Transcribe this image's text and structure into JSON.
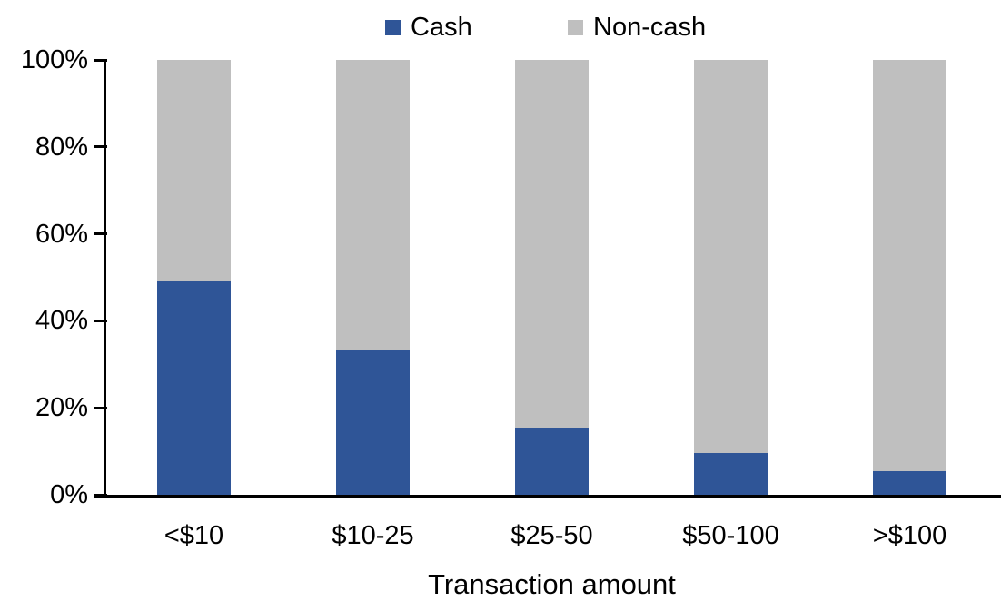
{
  "chart_data": {
    "type": "bar",
    "stacked": true,
    "percent_stacked": true,
    "title": "",
    "categories": [
      "<$10",
      "$10-25",
      "$25-50",
      "$50-100",
      ">$100"
    ],
    "series": [
      {
        "name": "Cash",
        "color": "#2F5597",
        "values": [
          49,
          33.5,
          15.5,
          9.5,
          5.5
        ]
      },
      {
        "name": "Non-cash",
        "color": "#BFBFBF",
        "values": [
          51,
          66.5,
          84.5,
          90.5,
          94.5
        ]
      }
    ],
    "xlabel": "Transaction amount",
    "ylabel": "",
    "ylim": [
      0,
      100
    ],
    "ytick_step": 20,
    "ytick_labels": [
      "0%",
      "20%",
      "40%",
      "60%",
      "80%",
      "100%"
    ],
    "legend_position": "top",
    "legend_entries": [
      "Cash",
      "Non-cash"
    ],
    "grid": false,
    "axis_color": "#000000",
    "text_color": "#000000"
  }
}
